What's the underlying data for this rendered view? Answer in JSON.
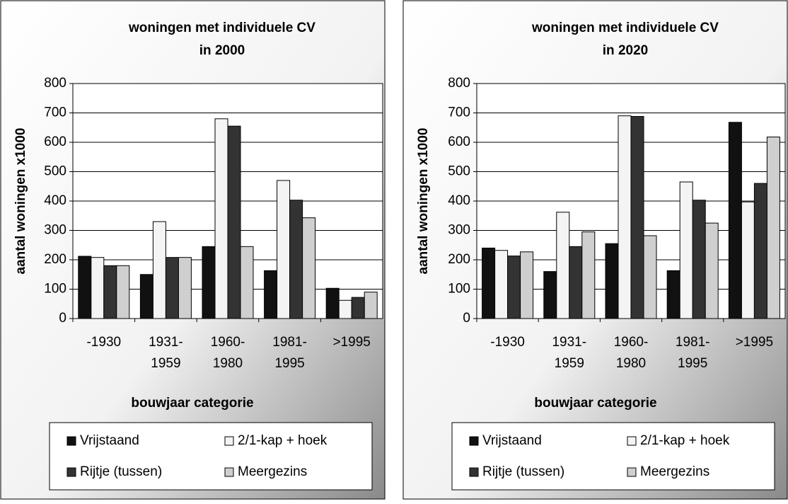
{
  "chart_data": [
    {
      "type": "bar",
      "title": [
        "woningen met individuele CV",
        "in 2000"
      ],
      "y_label": "aantal woningen x1000",
      "x_label": "bouwjaar categorie",
      "categories": [
        [
          "-1930"
        ],
        [
          "1931-",
          "1959"
        ],
        [
          "1960-",
          "1980"
        ],
        [
          "1981-",
          "1995"
        ],
        [
          ">1995"
        ]
      ],
      "series": [
        {
          "name": "Vrijstaand",
          "color": "#111111",
          "values": [
            212,
            150,
            245,
            163,
            103
          ]
        },
        {
          "name": "2/1-kap + hoek",
          "color": "#f4f4f4",
          "values": [
            208,
            330,
            680,
            470,
            62
          ]
        },
        {
          "name": "Rijtje (tussen)",
          "color": "#333333",
          "values": [
            180,
            208,
            655,
            403,
            72
          ]
        },
        {
          "name": "Meergezins",
          "color": "#cfcfcf",
          "values": [
            180,
            208,
            245,
            343,
            90
          ]
        }
      ],
      "ylim": [
        0,
        800
      ],
      "yticks": [
        0,
        100,
        200,
        300,
        400,
        500,
        600,
        700,
        800
      ],
      "grid": true,
      "legend": "bottom"
    },
    {
      "type": "bar",
      "title": [
        "woningen met individuele CV",
        "in 2020"
      ],
      "y_label": "aantal woningen x1000",
      "x_label": "bouwjaar categorie",
      "categories": [
        [
          "-1930"
        ],
        [
          "1931-",
          "1959"
        ],
        [
          "1960-",
          "1980"
        ],
        [
          "1981-",
          "1995"
        ],
        [
          ">1995"
        ]
      ],
      "series": [
        {
          "name": "Vrijstaand",
          "color": "#111111",
          "values": [
            240,
            160,
            255,
            163,
            668
          ]
        },
        {
          "name": "2/1-kap + hoek",
          "color": "#f4f4f4",
          "values": [
            232,
            362,
            690,
            465,
            397
          ]
        },
        {
          "name": "Rijtje (tussen)",
          "color": "#333333",
          "values": [
            213,
            245,
            688,
            403,
            460
          ]
        },
        {
          "name": "Meergezins",
          "color": "#cfcfcf",
          "values": [
            227,
            295,
            282,
            325,
            618
          ]
        }
      ],
      "ylim": [
        0,
        800
      ],
      "yticks": [
        0,
        100,
        200,
        300,
        400,
        500,
        600,
        700,
        800
      ],
      "grid": true,
      "legend": "bottom"
    }
  ]
}
